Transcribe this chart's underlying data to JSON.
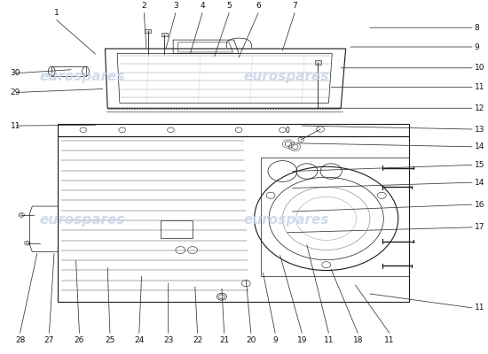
{
  "background_color": "#ffffff",
  "watermark_color": "#c8d4e8",
  "watermark_text": "eurospares",
  "line_color": "#1a1a1a",
  "label_color": "#111111",
  "leader_color": "#333333",
  "part_numbers_right": [
    {
      "num": "8",
      "xl": 0.975,
      "yl": 0.93,
      "xt": 0.76,
      "yt": 0.93
    },
    {
      "num": "9",
      "xl": 0.975,
      "yl": 0.875,
      "xt": 0.72,
      "yt": 0.875
    },
    {
      "num": "10",
      "xl": 0.975,
      "yl": 0.815,
      "xt": 0.7,
      "yt": 0.815
    },
    {
      "num": "11",
      "xl": 0.975,
      "yl": 0.76,
      "xt": 0.68,
      "yt": 0.76
    },
    {
      "num": "12",
      "xl": 0.975,
      "yl": 0.7,
      "xt": 0.65,
      "yt": 0.7
    },
    {
      "num": "13",
      "xl": 0.975,
      "yl": 0.64,
      "xt": 0.62,
      "yt": 0.65
    },
    {
      "num": "14",
      "xl": 0.975,
      "yl": 0.59,
      "xt": 0.61,
      "yt": 0.6
    },
    {
      "num": "15",
      "xl": 0.975,
      "yl": 0.538,
      "xt": 0.6,
      "yt": 0.52
    },
    {
      "num": "14",
      "xl": 0.975,
      "yl": 0.488,
      "xt": 0.6,
      "yt": 0.472
    },
    {
      "num": "16",
      "xl": 0.975,
      "yl": 0.425,
      "xt": 0.6,
      "yt": 0.405
    },
    {
      "num": "17",
      "xl": 0.975,
      "yl": 0.36,
      "xt": 0.59,
      "yt": 0.345
    },
    {
      "num": "11",
      "xl": 0.975,
      "yl": 0.13,
      "xt": 0.76,
      "yt": 0.17
    }
  ],
  "part_numbers_top": [
    {
      "num": "1",
      "xl": 0.115,
      "yl": 0.96,
      "xt": 0.195,
      "yt": 0.855
    },
    {
      "num": "2",
      "xl": 0.295,
      "yl": 0.98,
      "xt": 0.3,
      "yt": 0.87
    },
    {
      "num": "3",
      "xl": 0.36,
      "yl": 0.98,
      "xt": 0.34,
      "yt": 0.87
    },
    {
      "num": "4",
      "xl": 0.415,
      "yl": 0.98,
      "xt": 0.39,
      "yt": 0.855
    },
    {
      "num": "5",
      "xl": 0.47,
      "yl": 0.98,
      "xt": 0.44,
      "yt": 0.848
    },
    {
      "num": "6",
      "xl": 0.53,
      "yl": 0.98,
      "xt": 0.49,
      "yt": 0.845
    },
    {
      "num": "7",
      "xl": 0.605,
      "yl": 0.98,
      "xt": 0.58,
      "yt": 0.865
    }
  ],
  "part_numbers_left": [
    {
      "num": "30",
      "xl": 0.02,
      "yl": 0.8,
      "xt": 0.145,
      "yt": 0.81
    },
    {
      "num": "29",
      "xl": 0.02,
      "yl": 0.745,
      "xt": 0.21,
      "yt": 0.755
    },
    {
      "num": "11",
      "xl": 0.02,
      "yl": 0.65,
      "xt": 0.195,
      "yt": 0.652
    }
  ],
  "part_numbers_bottom": [
    {
      "num": "28",
      "xl": 0.04,
      "yl": 0.048,
      "xt": 0.075,
      "yt": 0.285
    },
    {
      "num": "27",
      "xl": 0.1,
      "yl": 0.048,
      "xt": 0.11,
      "yt": 0.285
    },
    {
      "num": "26",
      "xl": 0.162,
      "yl": 0.048,
      "xt": 0.155,
      "yt": 0.265
    },
    {
      "num": "25",
      "xl": 0.225,
      "yl": 0.048,
      "xt": 0.22,
      "yt": 0.245
    },
    {
      "num": "24",
      "xl": 0.285,
      "yl": 0.048,
      "xt": 0.29,
      "yt": 0.22
    },
    {
      "num": "23",
      "xl": 0.345,
      "yl": 0.048,
      "xt": 0.345,
      "yt": 0.2
    },
    {
      "num": "22",
      "xl": 0.405,
      "yl": 0.048,
      "xt": 0.4,
      "yt": 0.19
    },
    {
      "num": "21",
      "xl": 0.46,
      "yl": 0.048,
      "xt": 0.455,
      "yt": 0.185
    },
    {
      "num": "20",
      "xl": 0.515,
      "yl": 0.048,
      "xt": 0.505,
      "yt": 0.21
    },
    {
      "num": "9",
      "xl": 0.565,
      "yl": 0.048,
      "xt": 0.54,
      "yt": 0.23
    },
    {
      "num": "19",
      "xl": 0.62,
      "yl": 0.048,
      "xt": 0.575,
      "yt": 0.28
    },
    {
      "num": "11",
      "xl": 0.675,
      "yl": 0.048,
      "xt": 0.63,
      "yt": 0.31
    },
    {
      "num": "18",
      "xl": 0.735,
      "yl": 0.048,
      "xt": 0.68,
      "yt": 0.24
    },
    {
      "num": "11",
      "xl": 0.8,
      "yl": 0.048,
      "xt": 0.73,
      "yt": 0.195
    }
  ]
}
